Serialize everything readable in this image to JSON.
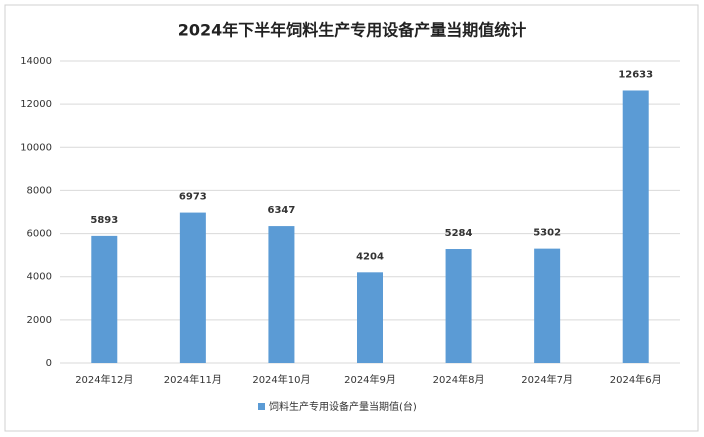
{
  "chart_data": {
    "type": "bar",
    "title": "2024年下半年饲料生产专用设备产量当期值统计",
    "categories": [
      "2024年12月",
      "2024年11月",
      "2024年10月",
      "2024年9月",
      "2024年8月",
      "2024年7月",
      "2024年6月"
    ],
    "series": [
      {
        "name": "饲料生产专用设备产量当期值(台)",
        "color": "#5b9bd5",
        "values": [
          5893,
          6973,
          6347,
          4204,
          5284,
          5302,
          12633
        ]
      }
    ],
    "ylim": [
      0,
      14000
    ],
    "yticks": [
      0,
      2000,
      4000,
      6000,
      8000,
      10000,
      12000,
      14000
    ],
    "grid": true,
    "legend": "bottom"
  }
}
